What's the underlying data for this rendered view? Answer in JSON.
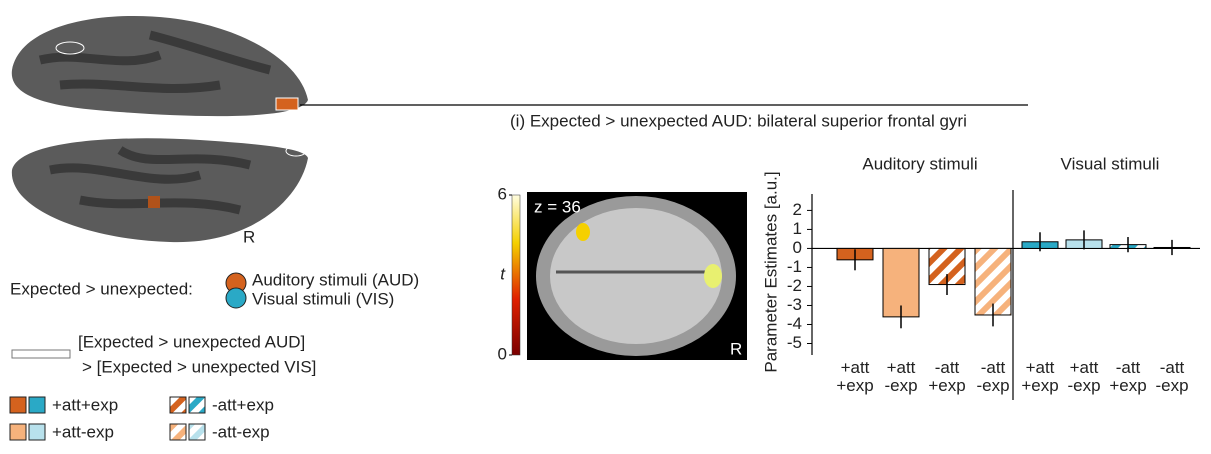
{
  "figure": {
    "panel_title": "(i) Expected > unexpected AUD: bilateral superior frontal gyri",
    "brain_side": "R",
    "contrast_label": "Expected > unexpected:",
    "contrast_aud": "Auditory stimuli (AUD)",
    "contrast_vis": "Visual stimuli (VIS)",
    "outline_line1": "[Expected > unexpected AUD]",
    "outline_line2": "> [Expected > unexpected VIS]",
    "condition_legend": [
      "+att+exp",
      "-att+exp",
      "+att-exp",
      "-att-exp"
    ]
  },
  "slice": {
    "label": "z = 36",
    "side": "R",
    "colorbar_label": "t",
    "colorbar_ticks": [
      0,
      6
    ],
    "colorbar_lim": [
      0,
      6
    ]
  },
  "chart_data": {
    "type": "bar",
    "ylabel": "Parameter Estimates [a.u.]",
    "categories": [
      "+att +exp",
      "+att -exp",
      "-att +exp",
      "-att -exp"
    ],
    "hatched": [
      false,
      false,
      true,
      true
    ],
    "series": [
      {
        "name": "Auditory stimuli",
        "colors": [
          "#d4621e",
          "#f6b27c",
          "#d4621e",
          "#f6b27c"
        ],
        "values": [
          -0.6,
          -3.6,
          -1.9,
          -3.5
        ],
        "errors": [
          0.55,
          0.6,
          0.55,
          0.6
        ]
      },
      {
        "name": "Visual stimuli",
        "colors": [
          "#2aa9c6",
          "#b8e1ec",
          "#2aa9c6",
          "#b8e1ec"
        ],
        "values": [
          0.35,
          0.45,
          0.2,
          0.05
        ],
        "errors": [
          0.5,
          0.5,
          0.4,
          0.4
        ]
      }
    ],
    "ylim": [
      -5.5,
      2.6
    ],
    "yticks": [
      -5,
      -4,
      -3,
      -2,
      -1,
      0,
      1,
      2
    ]
  }
}
